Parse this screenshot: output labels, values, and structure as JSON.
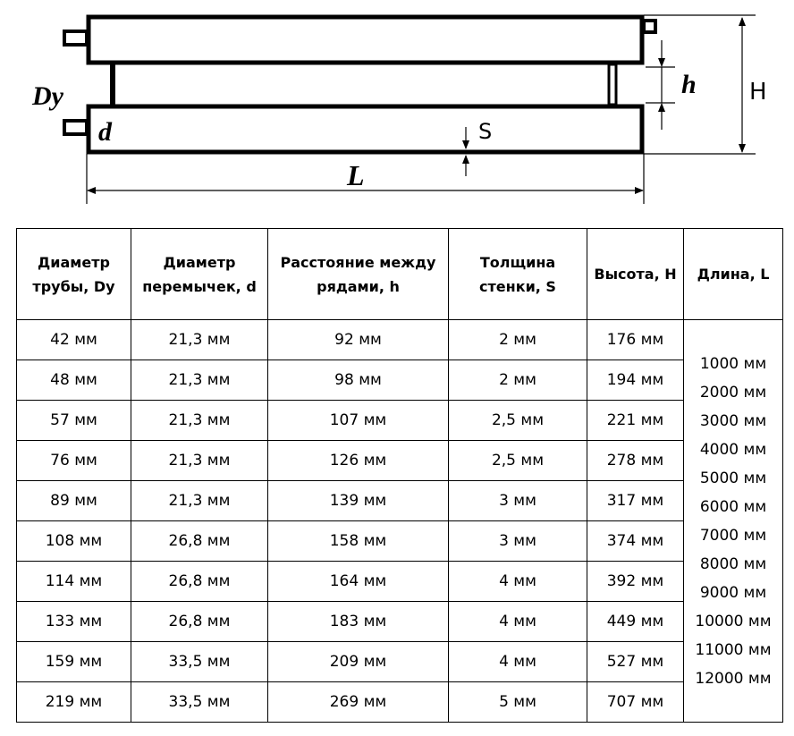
{
  "diagram": {
    "labels": {
      "Dy": "Dy",
      "d": "d",
      "S": "S",
      "h": "h",
      "H": "H",
      "L": "L"
    }
  },
  "table": {
    "headers": [
      "Диаметр трубы, Dy",
      "Диаметр перемычек, d",
      "Расстояние между рядами, h",
      "Толщина стенки, S",
      "Высота, H",
      "Длина, L"
    ],
    "rows": [
      [
        "42 мм",
        "21,3 мм",
        "92 мм",
        "2 мм",
        "176 мм"
      ],
      [
        "48 мм",
        "21,3 мм",
        "98 мм",
        "2 мм",
        "194 мм"
      ],
      [
        "57 мм",
        "21,3 мм",
        "107 мм",
        "2,5 мм",
        "221 мм"
      ],
      [
        "76 мм",
        "21,3 мм",
        "126 мм",
        "2,5 мм",
        "278 мм"
      ],
      [
        "89 мм",
        "21,3 мм",
        "139 мм",
        "3 мм",
        "317 мм"
      ],
      [
        "108 мм",
        "26,8 мм",
        "158 мм",
        "3 мм",
        "374 мм"
      ],
      [
        "114 мм",
        "26,8 мм",
        "164 мм",
        "4 мм",
        "392 мм"
      ],
      [
        "133 мм",
        "26,8 мм",
        "183 мм",
        "4 мм",
        "449 мм"
      ],
      [
        "159 мм",
        "33,5 мм",
        "209 мм",
        "4 мм",
        "527 мм"
      ],
      [
        "219 мм",
        "33,5 мм",
        "269 мм",
        "5 мм",
        "707 мм"
      ]
    ],
    "lengths": [
      "1000 мм",
      "2000 мм",
      "3000 мм",
      "4000 мм",
      "5000 мм",
      "6000 мм",
      "7000 мм",
      "8000 мм",
      "9000 мм",
      "10000 мм",
      "11000 мм",
      "12000 мм"
    ]
  }
}
